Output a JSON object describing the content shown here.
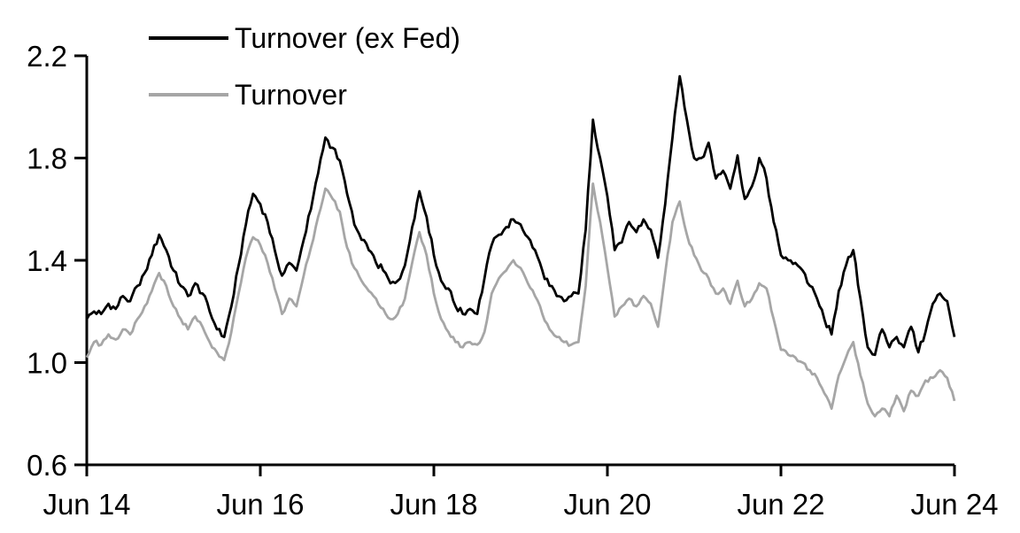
{
  "chart_data": {
    "type": "line",
    "title": "",
    "background": "#ffffff",
    "axis_color": "#000000",
    "grid": false,
    "legend_position": "top-left-inside",
    "x_unit": "months since Jun 2014",
    "x_range_months": [
      0,
      120
    ],
    "x_tick_positions": [
      0,
      24,
      48,
      72,
      96,
      120
    ],
    "x_tick_labels": [
      "Jun 14",
      "Jun 16",
      "Jun 18",
      "Jun 20",
      "Jun 22",
      "Jun 24"
    ],
    "ylim": [
      0.6,
      2.2
    ],
    "y_ticks": [
      0.6,
      1.0,
      1.4,
      1.8,
      2.2
    ],
    "y_tick_labels": [
      "0.6",
      "1.0",
      "1.4",
      "1.8",
      "2.2"
    ],
    "series": [
      {
        "name": "Turnover (ex Fed)",
        "color": "#000000",
        "values": [
          1.17,
          1.2,
          1.19,
          1.23,
          1.21,
          1.26,
          1.24,
          1.3,
          1.35,
          1.42,
          1.5,
          1.44,
          1.36,
          1.3,
          1.26,
          1.31,
          1.27,
          1.2,
          1.13,
          1.1,
          1.22,
          1.38,
          1.54,
          1.66,
          1.62,
          1.55,
          1.44,
          1.34,
          1.39,
          1.36,
          1.48,
          1.6,
          1.74,
          1.88,
          1.84,
          1.79,
          1.66,
          1.54,
          1.48,
          1.44,
          1.39,
          1.36,
          1.31,
          1.32,
          1.38,
          1.53,
          1.67,
          1.57,
          1.42,
          1.32,
          1.29,
          1.22,
          1.19,
          1.21,
          1.19,
          1.33,
          1.46,
          1.5,
          1.53,
          1.56,
          1.54,
          1.49,
          1.44,
          1.36,
          1.3,
          1.26,
          1.24,
          1.26,
          1.27,
          1.52,
          1.95,
          1.8,
          1.65,
          1.44,
          1.47,
          1.55,
          1.51,
          1.56,
          1.52,
          1.41,
          1.62,
          1.88,
          2.12,
          1.95,
          1.8,
          1.8,
          1.86,
          1.72,
          1.75,
          1.68,
          1.81,
          1.64,
          1.69,
          1.8,
          1.72,
          1.55,
          1.42,
          1.4,
          1.39,
          1.36,
          1.3,
          1.25,
          1.17,
          1.11,
          1.28,
          1.38,
          1.44,
          1.25,
          1.06,
          1.03,
          1.13,
          1.06,
          1.1,
          1.06,
          1.14,
          1.04,
          1.12,
          1.23,
          1.27,
          1.24,
          1.1
        ]
      },
      {
        "name": "Turnover",
        "color": "#a6a6a6",
        "values": [
          1.02,
          1.08,
          1.07,
          1.11,
          1.09,
          1.13,
          1.11,
          1.17,
          1.22,
          1.28,
          1.35,
          1.3,
          1.22,
          1.17,
          1.13,
          1.18,
          1.14,
          1.08,
          1.04,
          1.01,
          1.12,
          1.27,
          1.41,
          1.49,
          1.46,
          1.39,
          1.29,
          1.19,
          1.25,
          1.22,
          1.34,
          1.45,
          1.57,
          1.68,
          1.64,
          1.59,
          1.45,
          1.37,
          1.32,
          1.28,
          1.25,
          1.21,
          1.17,
          1.19,
          1.25,
          1.39,
          1.51,
          1.42,
          1.27,
          1.17,
          1.12,
          1.08,
          1.06,
          1.08,
          1.07,
          1.12,
          1.27,
          1.33,
          1.36,
          1.4,
          1.37,
          1.31,
          1.26,
          1.19,
          1.13,
          1.1,
          1.08,
          1.07,
          1.08,
          1.3,
          1.7,
          1.55,
          1.37,
          1.18,
          1.22,
          1.25,
          1.22,
          1.26,
          1.23,
          1.14,
          1.35,
          1.55,
          1.63,
          1.5,
          1.42,
          1.36,
          1.33,
          1.27,
          1.29,
          1.23,
          1.32,
          1.22,
          1.25,
          1.31,
          1.29,
          1.17,
          1.05,
          1.03,
          1.02,
          1.0,
          0.97,
          0.94,
          0.88,
          0.82,
          0.95,
          1.02,
          1.08,
          0.95,
          0.84,
          0.79,
          0.82,
          0.79,
          0.87,
          0.81,
          0.89,
          0.87,
          0.93,
          0.94,
          0.97,
          0.94,
          0.85
        ]
      }
    ]
  }
}
